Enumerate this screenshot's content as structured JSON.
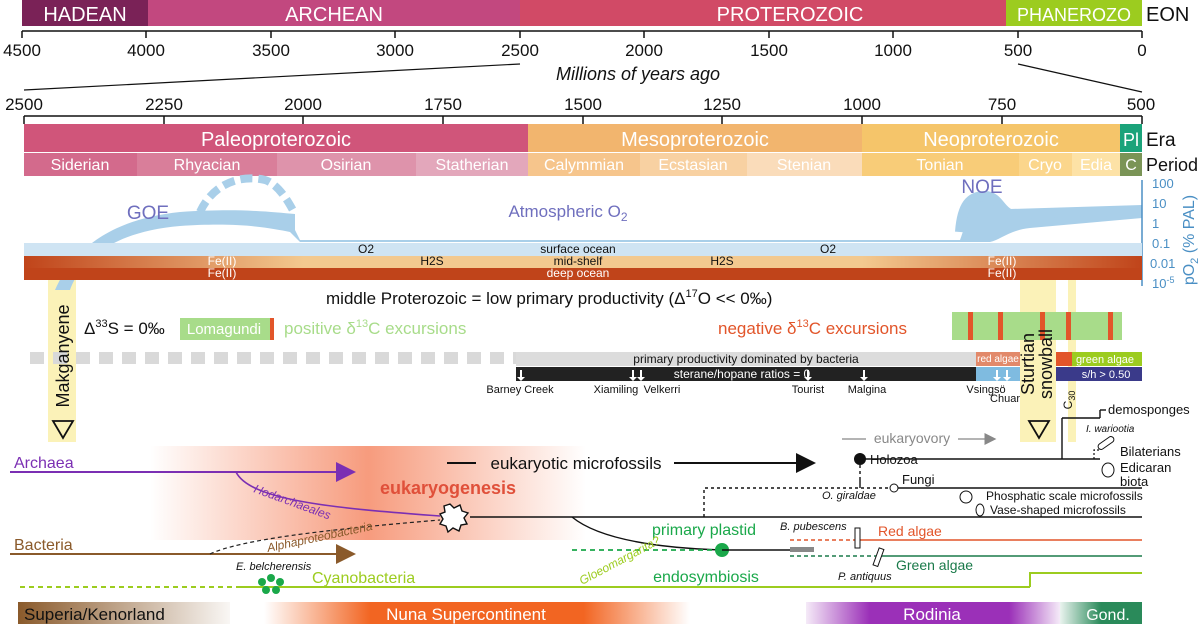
{
  "eon_bar": {
    "eons": [
      {
        "name": "HADEAN",
        "color": "#7a2257"
      },
      {
        "name": "ARCHEAN",
        "color": "#c2487f"
      },
      {
        "name": "PROTEROZOIC",
        "color": "#d14a66"
      },
      {
        "name": "PHANEROZO",
        "color": "#9ccc1f"
      }
    ],
    "row_label": "EON",
    "ticks": [
      "4500",
      "4000",
      "3500",
      "3000",
      "2500",
      "2000",
      "1500",
      "1000",
      "500",
      "0"
    ],
    "axis_title": "Millions of years ago"
  },
  "detail_axis": {
    "ticks": [
      "2500",
      "2250",
      "2000",
      "1750",
      "1500",
      "1250",
      "1000",
      "750",
      "500"
    ]
  },
  "eras": {
    "row_label": "Era",
    "items": [
      {
        "name": "Paleoproterozoic",
        "color": "#d0557a"
      },
      {
        "name": "Mesoproterozoic",
        "color": "#f2b56e"
      },
      {
        "name": "Neoproterozoic",
        "color": "#f5c56a"
      },
      {
        "name": "Pl",
        "color": "#1aa37a"
      }
    ]
  },
  "periods": {
    "row_label": "Period",
    "items": [
      {
        "name": "Siderian",
        "color": "#d36a8c"
      },
      {
        "name": "Rhyacian",
        "color": "#d97e9a"
      },
      {
        "name": "Osirian",
        "color": "#de93ab"
      },
      {
        "name": "Statherian",
        "color": "#e3a7bb"
      },
      {
        "name": "Calymmian",
        "color": "#f6c58c"
      },
      {
        "name": "Ecstasian",
        "color": "#f8d1a2"
      },
      {
        "name": "Stenian",
        "color": "#fadcba"
      },
      {
        "name": "Tonian",
        "color": "#f8cc78"
      },
      {
        "name": "Cryo",
        "color": "#fbd68c"
      },
      {
        "name": "Edia",
        "color": "#fde2a6"
      },
      {
        "name": "C",
        "color": "#7a9456"
      }
    ]
  },
  "oxygen": {
    "goe": "GOE",
    "noe": "NOE",
    "atmospheric": "Atmospheric O",
    "atmospheric_sub": "2",
    "scale_ticks": [
      "100",
      "10",
      "1",
      "0.1",
      "0.01",
      "10"
    ],
    "scale_exp": "-5",
    "scale_label": "pO",
    "scale_label_sub": "2",
    "scale_label_rest": " (% PAL)"
  },
  "ocean": {
    "surface": "surface ocean",
    "mid": "mid-shelf",
    "deep": "deep ocean",
    "o2_left": "O2",
    "o2_right": "O2",
    "h2s_left": "H2S",
    "h2s_right": "H2S",
    "fe_left_1": "Fe(II)",
    "fe_left_2": "Fe(II)",
    "fe_right_1": "Fe(II)",
    "fe_right_2": "Fe(II)"
  },
  "productivity": {
    "statement": "middle Proterozoic = low primary productivity (Δ",
    "statement_sup": "17",
    "statement_end": "O << 0‰)",
    "s33": "Δ",
    "s33_sup": "33",
    "s33_end": "S = 0‰",
    "lomagundi": "Lomagundi",
    "positive": "positive δ",
    "positive_sup": "13",
    "positive_end": "C excursions",
    "negative": "negative δ",
    "negative_sup": "13",
    "negative_end": "C excursions",
    "bacteria_bar": "primary productivity dominated by bacteria",
    "sterane_bar": "sterane/hopane ratios = 0",
    "red_algae": "red algae",
    "green_algae": "green algae",
    "sh_ratio": "s/h > 0.50",
    "sites": [
      "Barney Creek",
      "Xiamiling",
      "Velkerri",
      "Tourist",
      "Malgina",
      "Vsingsö",
      "Chuar"
    ]
  },
  "glaciations": {
    "makganyene": "Makganyene",
    "sturtian": "Sturtian",
    "snowball": "snowball",
    "c30": "C",
    "c30_sub": "30"
  },
  "tree": {
    "archaea": "Archaea",
    "bacteria": "Bacteria",
    "hodarchaeales": "Hodarchaeales",
    "alphaproteobacteria": "Alphaproteobacteria",
    "eukaryogenesis": "eukaryogenesis",
    "eukaryotic_microfossils": "eukaryotic microfossils",
    "eukaryovory": "eukaryovory",
    "holozoa": "Holozoa",
    "o_giraldae": "O. giraldae",
    "fungi": "Fungi",
    "phosphatic": "Phosphatic scale microfossils",
    "vase": "Vase-shaped microfossils",
    "demosponges": "demosponges",
    "wariootia": "I. wariootia",
    "bilaterians": "Bilaterians",
    "ediacaran": "Edicaran",
    "ediacaran2": "biota",
    "primary_plastid": "primary plastid",
    "endosymbiosis": "endosymbiosis",
    "b_pubescens": "B. pubescens",
    "red_algae": "Red algae",
    "green_algae": "Green algae",
    "p_antiquus": "P. antiquus",
    "e_belcherensis": "E. belcherensis",
    "cyanobacteria": "Cyanobacteria",
    "gloeomargarita": "Gloeomargarita?"
  },
  "continents": {
    "superia": "Superia/Kenorland",
    "nuna": "Nuna Supercontinent",
    "rodinia": "Rodinia",
    "gond": "Gond."
  },
  "colors": {
    "oxygen": "#a9cfe9",
    "goe_text": "#6f6fbe",
    "scale": "#4a8fc4",
    "archaea": "#7b2fb3",
    "bacteria": "#8a5a2b",
    "eukaryogenesis": "#e0503a",
    "plastid": "#1aa84a",
    "cyano": "#9ccc1f",
    "red_algae": "#e2552a",
    "green_algae": "#1a7a4a",
    "glacial": "#fbf2b8"
  }
}
